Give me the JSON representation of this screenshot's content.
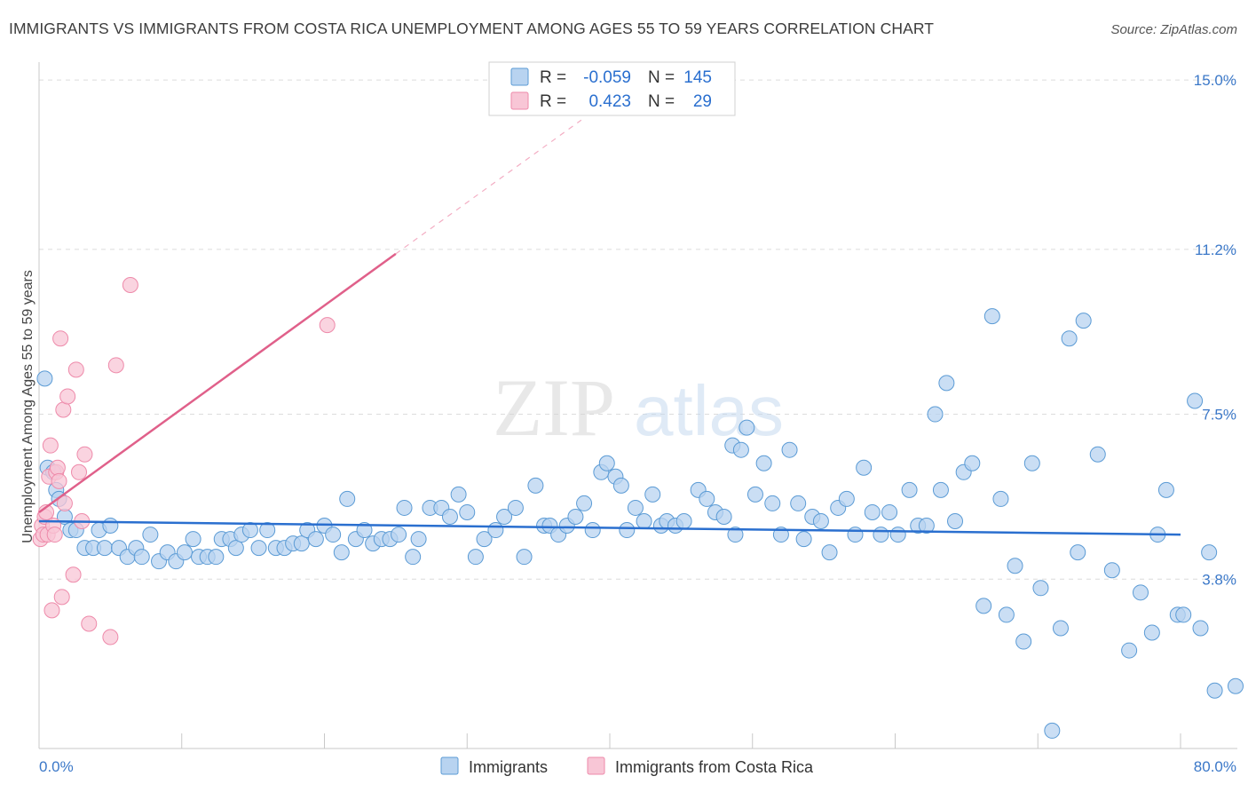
{
  "header": {
    "title": "IMMIGRANTS VS IMMIGRANTS FROM COSTA RICA UNEMPLOYMENT AMONG AGES 55 TO 59 YEARS CORRELATION CHART",
    "source": "Source: ZipAtlas.com"
  },
  "watermark": {
    "zip": "ZIP",
    "atlas": "atlas"
  },
  "colors": {
    "blue": "#5b9bd5",
    "blue_fill": "#b8d3f0",
    "blue_line": "#2a6fcf",
    "pink": "#ee8aaa",
    "pink_fill": "#f8c6d6",
    "pink_line": "#e0608a",
    "axis_value": "#3b78c8",
    "grid": "#dcdcdc"
  },
  "stats": [
    {
      "r_label": "R =",
      "r": "-0.059",
      "n_label": "N =",
      "n": "145"
    },
    {
      "r_label": "R =",
      "r": "0.423",
      "n_label": "N =",
      "n": "29"
    }
  ],
  "chart_data": {
    "type": "scatter",
    "title": "IMMIGRANTS VS IMMIGRANTS FROM COSTA RICA UNEMPLOYMENT AMONG AGES 55 TO 59 YEARS CORRELATION CHART",
    "xlabel": "",
    "ylabel": "Unemployment Among Ages 55 to 59 years",
    "xlim": [
      0,
      80
    ],
    "ylim": [
      0,
      15.4
    ],
    "x_tick_labels": [
      "0.0%",
      "80.0%"
    ],
    "y_ticks": [
      3.8,
      7.5,
      11.2,
      15.0
    ],
    "y_tick_labels": [
      "3.8%",
      "7.5%",
      "11.2%",
      "15.0%"
    ],
    "grid": true,
    "legend_position": "bottom-center",
    "series": [
      {
        "name": "Immigrants",
        "color": "#5b9bd5",
        "trend": {
          "x": [
            0,
            80
          ],
          "y": [
            5.1,
            4.8
          ],
          "dashed_ext": false
        },
        "points": [
          [
            0.4,
            8.3
          ],
          [
            0.6,
            6.3
          ],
          [
            1.0,
            6.2
          ],
          [
            1.2,
            5.8
          ],
          [
            1.4,
            5.6
          ],
          [
            1.8,
            5.2
          ],
          [
            2.2,
            4.9
          ],
          [
            2.6,
            4.9
          ],
          [
            3.2,
            4.5
          ],
          [
            3.8,
            4.5
          ],
          [
            4.2,
            4.9
          ],
          [
            4.6,
            4.5
          ],
          [
            5.0,
            5.0
          ],
          [
            5.6,
            4.5
          ],
          [
            6.2,
            4.3
          ],
          [
            6.8,
            4.5
          ],
          [
            7.2,
            4.3
          ],
          [
            7.8,
            4.8
          ],
          [
            8.4,
            4.2
          ],
          [
            9.0,
            4.4
          ],
          [
            9.6,
            4.2
          ],
          [
            10.2,
            4.4
          ],
          [
            10.8,
            4.7
          ],
          [
            11.2,
            4.3
          ],
          [
            11.8,
            4.3
          ],
          [
            12.4,
            4.3
          ],
          [
            12.8,
            4.7
          ],
          [
            13.4,
            4.7
          ],
          [
            13.8,
            4.5
          ],
          [
            14.2,
            4.8
          ],
          [
            14.8,
            4.9
          ],
          [
            15.4,
            4.5
          ],
          [
            16.0,
            4.9
          ],
          [
            16.6,
            4.5
          ],
          [
            17.2,
            4.5
          ],
          [
            17.8,
            4.6
          ],
          [
            18.4,
            4.6
          ],
          [
            18.8,
            4.9
          ],
          [
            19.4,
            4.7
          ],
          [
            20.0,
            5.0
          ],
          [
            20.6,
            4.8
          ],
          [
            21.2,
            4.4
          ],
          [
            21.6,
            5.6
          ],
          [
            22.2,
            4.7
          ],
          [
            22.8,
            4.9
          ],
          [
            23.4,
            4.6
          ],
          [
            24.0,
            4.7
          ],
          [
            24.6,
            4.7
          ],
          [
            25.2,
            4.8
          ],
          [
            25.6,
            5.4
          ],
          [
            26.2,
            4.3
          ],
          [
            26.6,
            4.7
          ],
          [
            27.4,
            5.4
          ],
          [
            28.2,
            5.4
          ],
          [
            28.8,
            5.2
          ],
          [
            29.4,
            5.7
          ],
          [
            30.0,
            5.3
          ],
          [
            30.6,
            4.3
          ],
          [
            31.2,
            4.7
          ],
          [
            32.0,
            4.9
          ],
          [
            32.6,
            5.2
          ],
          [
            33.4,
            5.4
          ],
          [
            34.0,
            4.3
          ],
          [
            34.8,
            5.9
          ],
          [
            35.4,
            5.0
          ],
          [
            35.8,
            5.0
          ],
          [
            36.4,
            4.8
          ],
          [
            37.0,
            5.0
          ],
          [
            37.6,
            5.2
          ],
          [
            38.2,
            5.5
          ],
          [
            38.8,
            4.9
          ],
          [
            39.4,
            6.2
          ],
          [
            39.8,
            6.4
          ],
          [
            40.4,
            6.1
          ],
          [
            40.8,
            5.9
          ],
          [
            41.2,
            4.9
          ],
          [
            41.8,
            5.4
          ],
          [
            42.4,
            5.1
          ],
          [
            43.0,
            5.7
          ],
          [
            43.6,
            5.0
          ],
          [
            44.0,
            5.1
          ],
          [
            44.6,
            5.0
          ],
          [
            45.2,
            5.1
          ],
          [
            46.2,
            5.8
          ],
          [
            46.8,
            5.6
          ],
          [
            47.4,
            5.3
          ],
          [
            48.0,
            5.2
          ],
          [
            48.6,
            6.8
          ],
          [
            48.8,
            4.8
          ],
          [
            49.2,
            6.7
          ],
          [
            49.6,
            7.2
          ],
          [
            50.2,
            5.7
          ],
          [
            50.8,
            6.4
          ],
          [
            51.4,
            5.5
          ],
          [
            52.0,
            4.8
          ],
          [
            52.6,
            6.7
          ],
          [
            53.2,
            5.5
          ],
          [
            53.6,
            4.7
          ],
          [
            54.2,
            5.2
          ],
          [
            54.8,
            5.1
          ],
          [
            55.4,
            4.4
          ],
          [
            56.0,
            5.4
          ],
          [
            56.6,
            5.6
          ],
          [
            57.2,
            4.8
          ],
          [
            57.8,
            6.3
          ],
          [
            58.4,
            5.3
          ],
          [
            59.0,
            4.8
          ],
          [
            59.6,
            5.3
          ],
          [
            60.2,
            4.8
          ],
          [
            61.0,
            5.8
          ],
          [
            61.6,
            5.0
          ],
          [
            62.2,
            5.0
          ],
          [
            62.8,
            7.5
          ],
          [
            63.2,
            5.8
          ],
          [
            64.2,
            5.1
          ],
          [
            64.8,
            6.2
          ],
          [
            65.4,
            6.4
          ],
          [
            66.2,
            3.2
          ],
          [
            66.8,
            9.7
          ],
          [
            67.4,
            5.6
          ],
          [
            67.8,
            3.0
          ],
          [
            68.4,
            4.1
          ],
          [
            69.0,
            2.4
          ],
          [
            69.6,
            6.4
          ],
          [
            70.2,
            3.6
          ],
          [
            71.0,
            0.4
          ],
          [
            71.6,
            2.7
          ],
          [
            72.2,
            9.2
          ],
          [
            72.8,
            4.4
          ],
          [
            73.2,
            9.6
          ],
          [
            74.2,
            6.6
          ],
          [
            75.2,
            4.0
          ],
          [
            76.4,
            2.2
          ],
          [
            77.2,
            3.5
          ],
          [
            78.0,
            2.6
          ],
          [
            78.4,
            4.8
          ],
          [
            79.0,
            5.8
          ],
          [
            79.8,
            3.0
          ],
          [
            80.2,
            3.0
          ],
          [
            81.0,
            7.8
          ],
          [
            81.4,
            2.7
          ],
          [
            82.0,
            4.4
          ],
          [
            82.4,
            1.3
          ],
          [
            84.0,
            1.4
          ],
          [
            63.6,
            8.2
          ]
        ]
      },
      {
        "name": "Immigrants from Costa Rica",
        "color": "#ee8aaa",
        "trend": {
          "x": [
            0,
            25
          ],
          "y": [
            5.3,
            11.1
          ],
          "dashed_ext_to": [
            38,
            14.1
          ]
        },
        "points": [
          [
            0.1,
            4.7
          ],
          [
            0.2,
            5.0
          ],
          [
            0.3,
            4.8
          ],
          [
            0.4,
            5.2
          ],
          [
            0.5,
            5.3
          ],
          [
            0.6,
            4.8
          ],
          [
            0.7,
            6.1
          ],
          [
            0.8,
            6.8
          ],
          [
            0.9,
            3.1
          ],
          [
            1.0,
            5.0
          ],
          [
            1.1,
            4.8
          ],
          [
            1.2,
            6.2
          ],
          [
            1.3,
            6.3
          ],
          [
            1.4,
            6.0
          ],
          [
            1.5,
            9.2
          ],
          [
            1.6,
            3.4
          ],
          [
            1.7,
            7.6
          ],
          [
            1.8,
            5.5
          ],
          [
            2.0,
            7.9
          ],
          [
            2.4,
            3.9
          ],
          [
            2.6,
            8.5
          ],
          [
            2.8,
            6.2
          ],
          [
            3.0,
            5.1
          ],
          [
            3.2,
            6.6
          ],
          [
            3.5,
            2.8
          ],
          [
            5.0,
            2.5
          ],
          [
            5.4,
            8.6
          ],
          [
            6.4,
            10.4
          ],
          [
            20.2,
            9.5
          ]
        ]
      }
    ]
  }
}
